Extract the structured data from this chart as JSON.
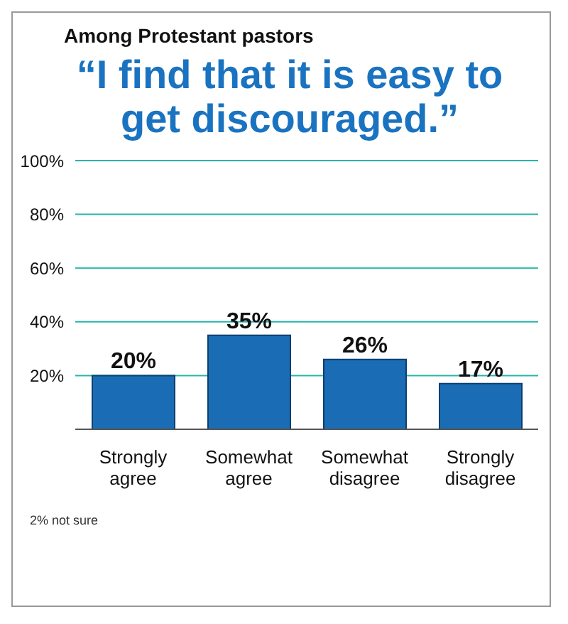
{
  "chart_data": {
    "type": "bar",
    "subtitle": "Among Protestant pastors",
    "title": "“I find that it is easy to get discouraged.”",
    "categories": [
      "Strongly agree",
      "Somewhat agree",
      "Somewhat disagree",
      "Strongly disagree"
    ],
    "values": [
      20,
      35,
      26,
      17
    ],
    "color": "#1a6db5",
    "value_labels": [
      "20%",
      "35%",
      "26%",
      "17%"
    ],
    "ylim": [
      0,
      100
    ],
    "yticks": [
      {
        "value": 20,
        "label": "20%"
      },
      {
        "value": 40,
        "label": "40%"
      },
      {
        "value": 60,
        "label": "60%"
      },
      {
        "value": 80,
        "label": "80%"
      },
      {
        "value": 100,
        "label": "100%"
      }
    ],
    "grid": "y",
    "annotations": [
      "2% not sure"
    ]
  }
}
